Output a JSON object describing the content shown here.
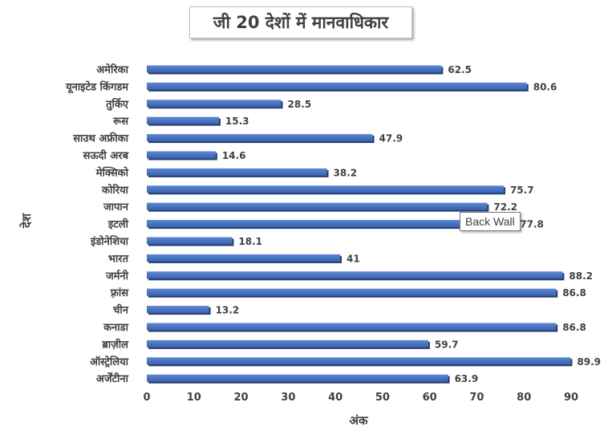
{
  "chart_data": {
    "type": "bar",
    "orientation": "horizontal",
    "title": "जी 20 देशों में मानवाधिकार",
    "xlabel": "अंक",
    "ylabel": "देश",
    "xlim": [
      0,
      90
    ],
    "xticks": [
      0,
      10,
      20,
      30,
      40,
      50,
      60,
      70,
      80,
      90
    ],
    "grid": false,
    "legend": "none",
    "bar_color": "#4472C4",
    "categories": [
      "अमेरिका",
      "यूनाइटेड किंगडम",
      "तुर्किए",
      "रूस",
      "साउथ अफ्रीका",
      "सऊदी अरब",
      "मेक्सिको",
      "कोरिया",
      "जापान",
      "इटली",
      "इंडोनेशिया",
      "भारत",
      "जर्मनी",
      "फ़्रांस",
      "चीन",
      "कनाडा",
      "ब्राज़ील",
      "ऑस्ट्रेलिया",
      "अर्जेंटीना"
    ],
    "values": [
      62.5,
      80.6,
      28.5,
      15.3,
      47.9,
      14.6,
      38.2,
      75.7,
      72.2,
      77.8,
      18.1,
      41,
      88.2,
      86.8,
      13.2,
      86.8,
      59.7,
      89.9,
      63.9
    ],
    "value_labels": [
      "62.5",
      "80.6",
      "28.5",
      "15.3",
      "47.9",
      "14.6",
      "38.2",
      "75.7",
      "72.2",
      "77.8",
      "18.1",
      "41",
      "88.2",
      "86.8",
      "13.2",
      "86.8",
      "59.7",
      "89.9",
      "63.9"
    ]
  },
  "tooltip": "Back Wall"
}
